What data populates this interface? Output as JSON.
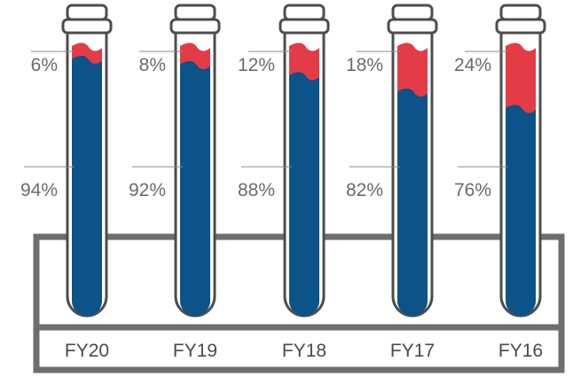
{
  "chart_data": {
    "type": "bar",
    "subtype": "stacked-100-percent-test-tubes",
    "categories": [
      "FY20",
      "FY19",
      "FY18",
      "FY17",
      "FY16"
    ],
    "series": [
      {
        "values": [
          94,
          92,
          88,
          82,
          76
        ],
        "labels": [
          "94%",
          "92%",
          "88%",
          "82%",
          "76%"
        ],
        "color": "#0b5389"
      },
      {
        "values": [
          6,
          8,
          12,
          18,
          24
        ],
        "labels": [
          "6%",
          "8%",
          "12%",
          "18%",
          "24%"
        ],
        "color": "#e33c46"
      }
    ],
    "ylim": [
      0,
      100
    ],
    "title": "",
    "xlabel": "",
    "ylabel": "",
    "grid": false,
    "legend": "none"
  },
  "colors": {
    "tube_outline": "#4d4d4d",
    "rack": "#6e6e6e",
    "cap_fill": "#ffffff",
    "leader_line": "#8a8a8a"
  }
}
